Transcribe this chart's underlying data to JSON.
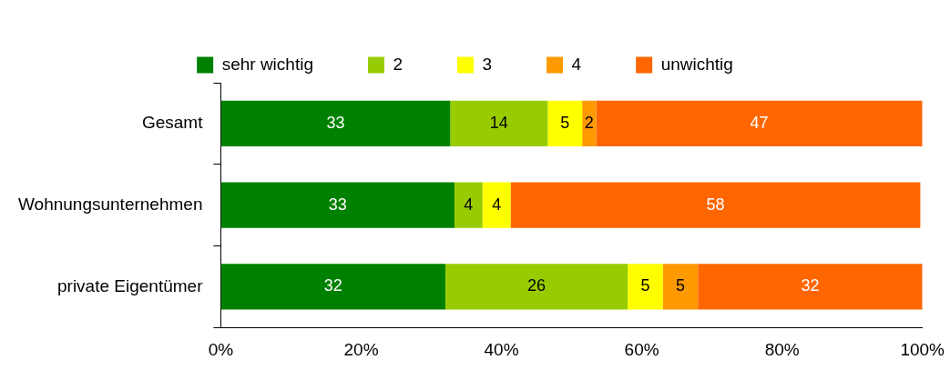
{
  "chart_data": {
    "type": "bar",
    "orientation": "horizontal",
    "stacked": true,
    "categories": [
      "Gesamt",
      "Wohnungsunternehmen",
      "private Eigentümer"
    ],
    "series": [
      {
        "name": "sehr wichtig",
        "color": "#008000",
        "values": [
          32.7,
          33.3,
          32
        ],
        "value_labels": [
          "33",
          "33",
          "32"
        ]
      },
      {
        "name": "2",
        "color": "#99cc00",
        "values": [
          13.9,
          4.0,
          26
        ],
        "value_labels": [
          "14",
          "4",
          "26"
        ]
      },
      {
        "name": "3",
        "color": "#ffff00",
        "values": [
          4.9,
          4.0,
          5
        ],
        "value_labels": [
          "5",
          "4",
          "5"
        ]
      },
      {
        "name": "4",
        "color": "#ff9900",
        "values": [
          2.0,
          null,
          5
        ],
        "value_labels": [
          "2",
          null,
          "5"
        ]
      },
      {
        "name": "unwichtig",
        "color": "#ff6600",
        "values": [
          46.5,
          58.4,
          32
        ],
        "value_labels": [
          "47",
          "58",
          "32"
        ]
      }
    ],
    "xlim": [
      0,
      100
    ],
    "xticks": [
      {
        "value": 0,
        "label": "0%"
      },
      {
        "value": 20,
        "label": "20%"
      },
      {
        "value": 40,
        "label": "40%"
      },
      {
        "value": 60,
        "label": "60%"
      },
      {
        "value": 80,
        "label": "80%"
      },
      {
        "value": 100,
        "label": "100%"
      }
    ],
    "grid": false,
    "legend": "top"
  }
}
